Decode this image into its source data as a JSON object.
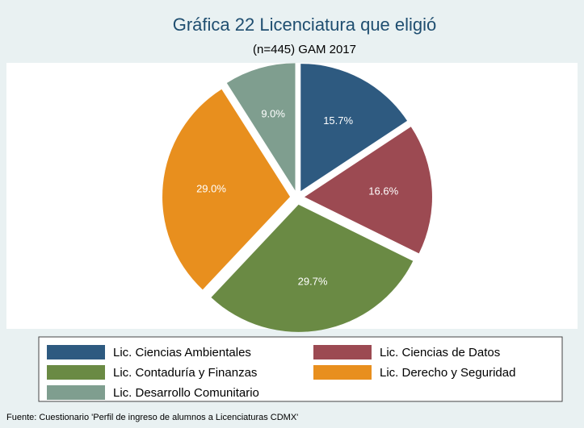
{
  "chart_data": {
    "type": "pie",
    "title": "Gráfica 22 Licenciatura que eligió",
    "subtitle": "(n=445) GAM 2017",
    "categories": [
      "Lic. Ciencias Ambientales",
      "Lic. Ciencias de Datos",
      "Lic. Contaduría y Finanzas",
      "Lic. Derecho y Seguridad",
      "Lic. Desarrollo Comunitario"
    ],
    "values": [
      15.7,
      16.6,
      29.7,
      29.0,
      9.0
    ],
    "value_labels": [
      "15.7%",
      "16.6%",
      "29.7%",
      "29.0%",
      "9.0%"
    ],
    "colors": [
      "#2e5a80",
      "#9c4a52",
      "#6a8a44",
      "#e88f1e",
      "#7f9e8f"
    ],
    "legend": "bottom",
    "source": "Fuente: Cuestionario 'Perfil de ingreso de alumnos a Licenciaturas CDMX'"
  }
}
